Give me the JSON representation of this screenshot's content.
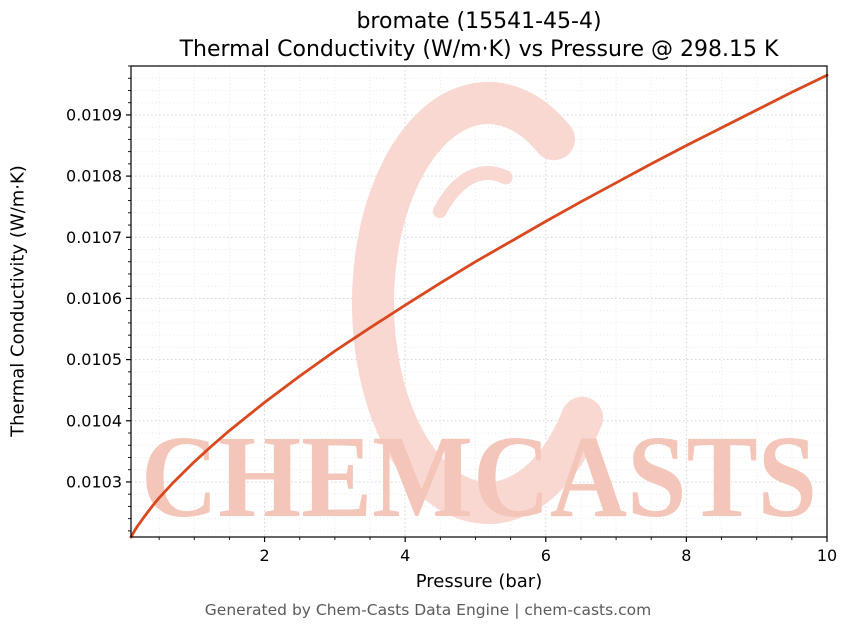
{
  "page": {
    "background": "#ffffff"
  },
  "title": {
    "line1": "bromate (15541-45-4)",
    "line2": "Thermal Conductivity (W/m·K) vs Pressure @ 298.15 K"
  },
  "footer": {
    "text": "Generated by Chem-Casts Data Engine | chem-casts.com",
    "color": "#5a5a5a"
  },
  "watermark": {
    "text": "CHEMCASTS",
    "text_color": "#f4c6ba",
    "logo_color": "#f8d8d1"
  },
  "chart_data": {
    "type": "line",
    "title": "bromate (15541-45-4)\nThermal Conductivity (W/m·K) vs Pressure @ 298.15 K",
    "xlabel": "Pressure (bar)",
    "ylabel": "Thermal Conductivity (W/m·K)",
    "xlim": [
      0.1,
      10
    ],
    "ylim": [
      0.01021,
      0.01098
    ],
    "x_ticks": [
      2,
      4,
      6,
      8,
      10
    ],
    "x_tick_labels": [
      "2",
      "4",
      "6",
      "8",
      "10"
    ],
    "y_ticks": [
      0.0103,
      0.0104,
      0.0105,
      0.0106,
      0.0107,
      0.0108,
      0.0109
    ],
    "y_tick_labels": [
      "0.0103",
      "0.0104",
      "0.0105",
      "0.0106",
      "0.0107",
      "0.0108",
      "0.0109"
    ],
    "minor_x_step": 0.5,
    "minor_y_step": 2e-05,
    "grid": {
      "on": true,
      "style": "dotted",
      "major_color": "#d4d4d4",
      "minor_color": "#eaeaea"
    },
    "legend": "none",
    "series": [
      {
        "name": "Thermal Conductivity vs Pressure",
        "color": "#d9481e",
        "x": [
          0.1,
          0.15,
          0.2,
          0.3,
          0.4,
          0.5,
          0.7,
          1.0,
          1.25,
          1.5,
          2.0,
          2.5,
          3.0,
          3.5,
          4.0,
          4.5,
          5.0,
          5.5,
          6.0,
          6.5,
          7.0,
          7.5,
          8.0,
          8.5,
          9.0,
          9.5,
          10.0
        ],
        "y": [
          0.01021,
          0.01022,
          0.010229,
          0.010245,
          0.01026,
          0.010274,
          0.010299,
          0.010333,
          0.010359,
          0.010384,
          0.01043,
          0.010473,
          0.010514,
          0.010552,
          0.010589,
          0.010625,
          0.01066,
          0.010693,
          0.010726,
          0.010758,
          0.010789,
          0.01082,
          0.01085,
          0.010879,
          0.010908,
          0.010937,
          0.010965
        ]
      }
    ]
  }
}
